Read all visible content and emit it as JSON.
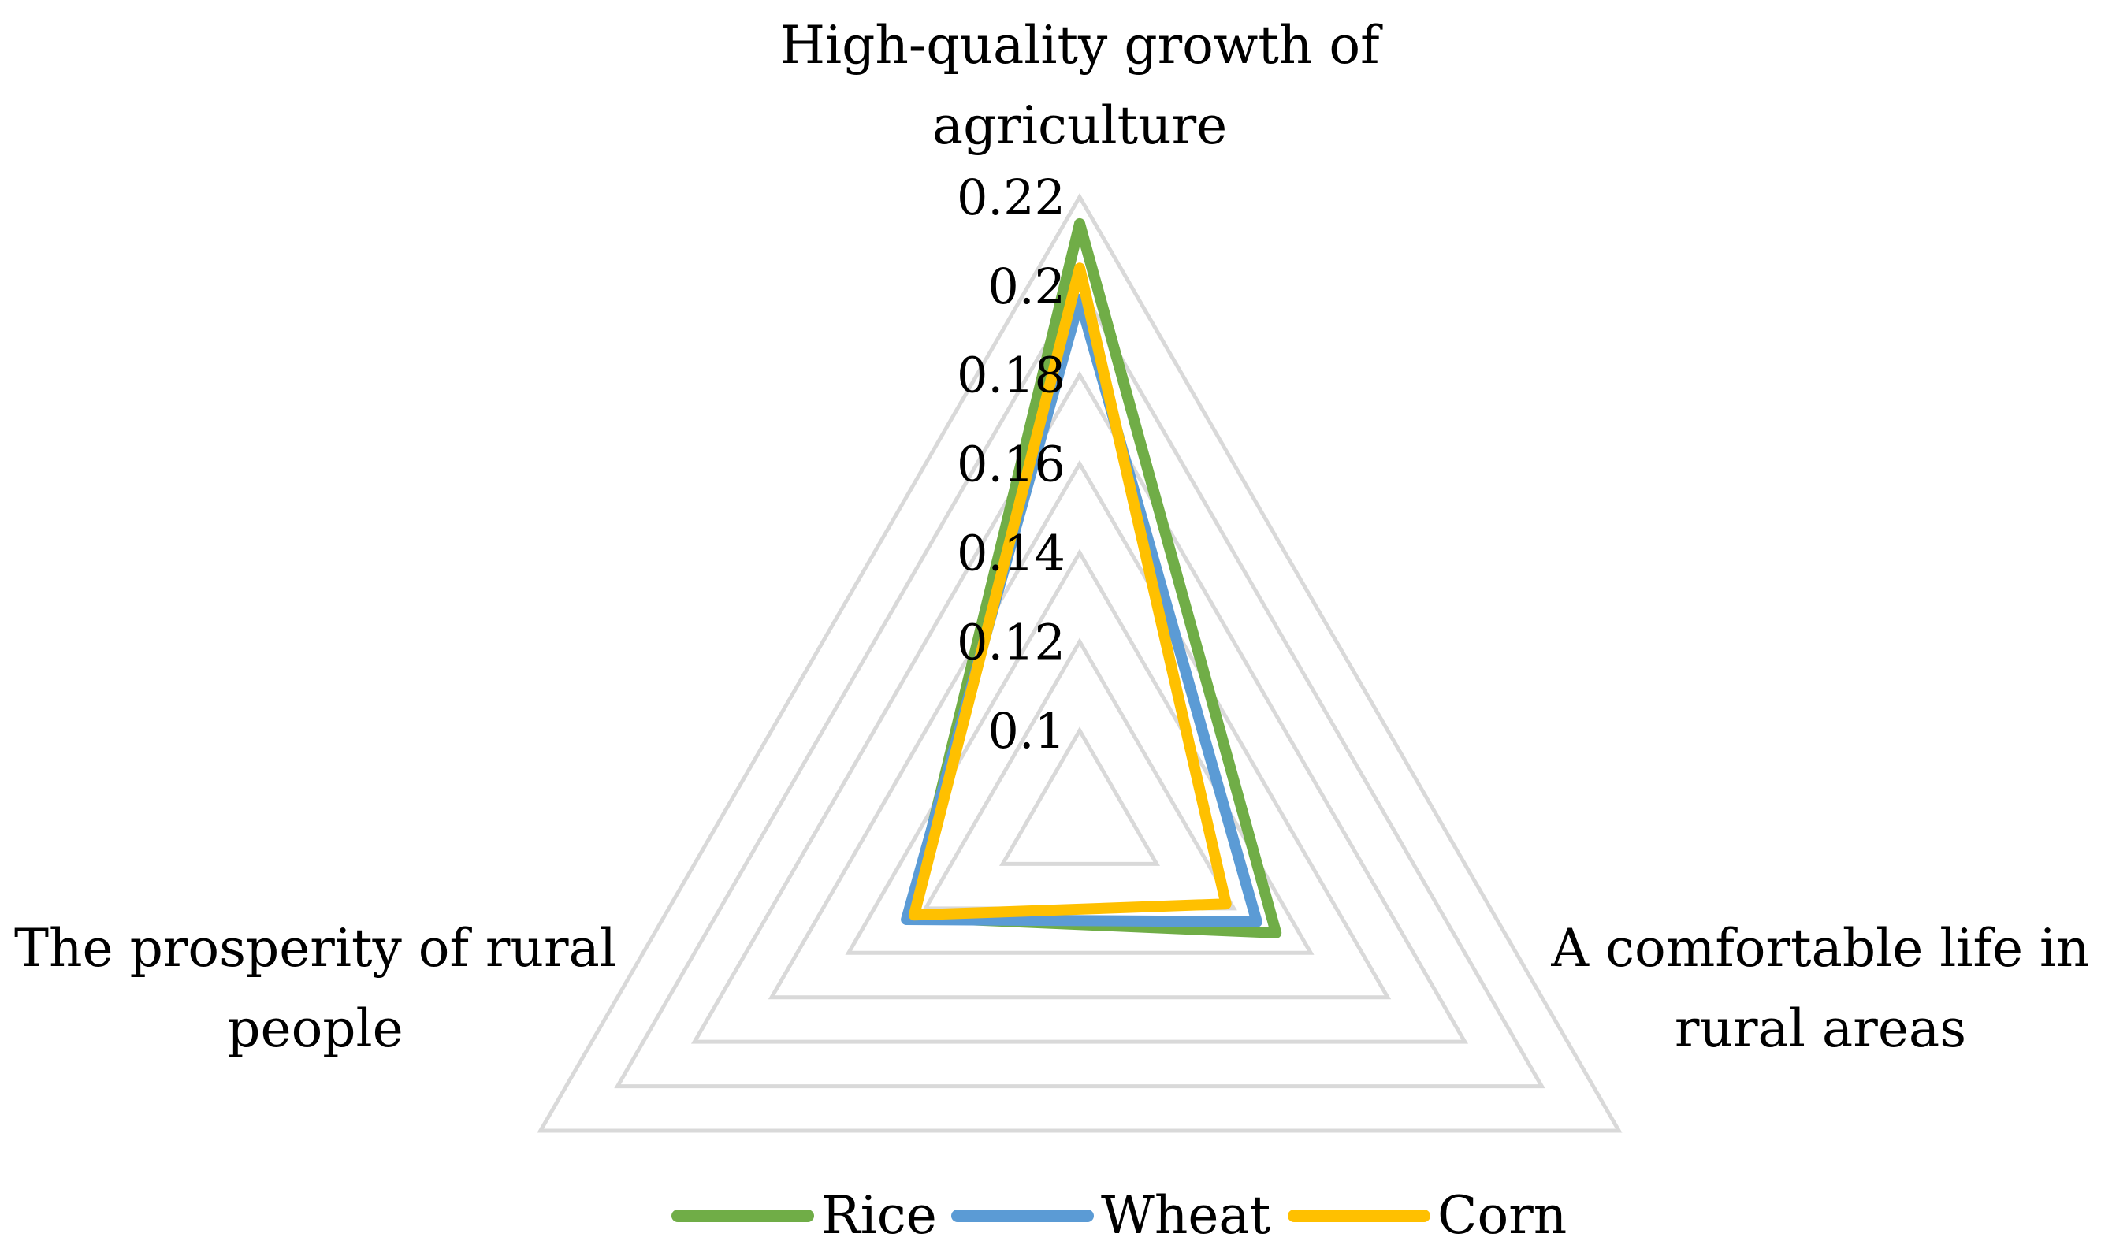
{
  "chart_data": {
    "type": "radar",
    "axes": [
      {
        "label_lines": [
          "High-quality growth of",
          "agriculture"
        ]
      },
      {
        "label_lines": [
          "A comfortable life in",
          "rural areas"
        ]
      },
      {
        "label_lines": [
          "The prosperity of rural",
          "people"
        ]
      }
    ],
    "rmin": 0.08,
    "rmax": 0.22,
    "ticks": [
      0.1,
      0.12,
      0.14,
      0.16,
      0.18,
      0.2,
      0.22
    ],
    "tick_labels": [
      "0.1",
      "0.12",
      "0.14",
      "0.16",
      "0.18",
      "0.2",
      "0.22"
    ],
    "grid": true,
    "legend_position": "bottom",
    "series": [
      {
        "name": "Rice",
        "color": "#70AD47",
        "values": [
          0.214,
          0.131,
          0.124
        ]
      },
      {
        "name": "Wheat",
        "color": "#5B9BD5",
        "values": [
          0.197,
          0.126,
          0.125
        ]
      },
      {
        "name": "Corn",
        "color": "#FFC000",
        "values": [
          0.204,
          0.118,
          0.123
        ]
      }
    ]
  }
}
